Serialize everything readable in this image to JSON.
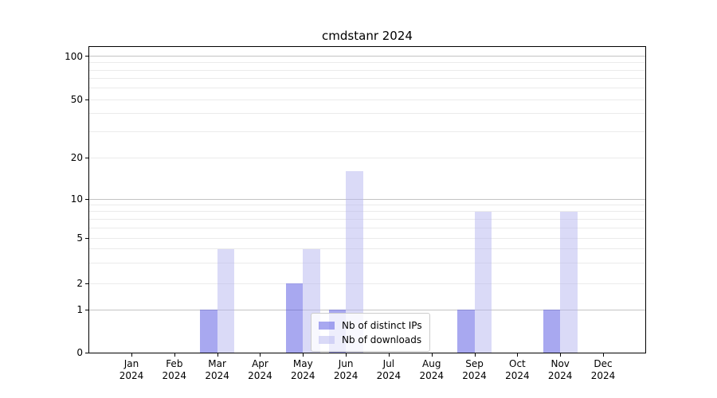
{
  "chart_data": {
    "type": "bar",
    "title": "cmdstanr 2024",
    "x_tick_year": "2024",
    "categories": [
      "Jan",
      "Feb",
      "Mar",
      "Apr",
      "May",
      "Jun",
      "Jul",
      "Aug",
      "Sep",
      "Oct",
      "Nov",
      "Dec"
    ],
    "series": [
      {
        "name": "Nb of distinct IPs",
        "color": "#5151e1",
        "alpha": 0.5,
        "values": [
          0,
          0,
          1,
          0,
          2,
          1,
          0,
          0,
          1,
          0,
          1,
          0
        ]
      },
      {
        "name": "Nb of downloads",
        "color": "#b6b6f0",
        "alpha": 0.5,
        "values": [
          0,
          0,
          4,
          0,
          4,
          16,
          0,
          0,
          8,
          0,
          8,
          0
        ]
      }
    ],
    "y_axis": {
      "scale": "log-like",
      "range": [
        0,
        100
      ],
      "tick_values": [
        0,
        1,
        2,
        5,
        10,
        20,
        50,
        100
      ],
      "tick_labels": [
        "0",
        "1",
        "2",
        "5",
        "10",
        "20",
        "50",
        "100"
      ]
    },
    "grid": {
      "major_at": [
        1,
        10,
        100
      ],
      "minor_at": [
        2,
        3,
        4,
        5,
        6,
        7,
        8,
        9,
        20,
        30,
        40,
        50,
        60,
        70,
        80,
        90
      ],
      "major_color": "#c3c3c3",
      "minor_color": "#ebebeb"
    },
    "legend_position": "lower-center",
    "axis_color": "#000000",
    "background_color": "#ffffff"
  }
}
